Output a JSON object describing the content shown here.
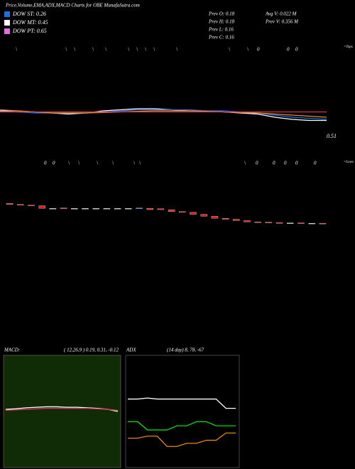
{
  "header": {
    "title": "Price,Volume,EMA,ADX,MACD Charts for OBE MunafaSutra.com",
    "legend": [
      {
        "label": "DOW ST: 0.26",
        "color": "#1e6fe0"
      },
      {
        "label": "DOW MT: 0.45",
        "color": "#ffffff"
      },
      {
        "label": "DOW PT: 0.65",
        "color": "#e070e0"
      }
    ],
    "prev": [
      "Prev  O: 0.18",
      "Prev  H: 0.18",
      "Prev  L: 0.16",
      "Prev  C: 0.16"
    ],
    "volume": [
      "Avg V: 0.022  M",
      "Prev  V: 0.356  M"
    ],
    "tops_label": "=Tops",
    "lows_label": "=Lows",
    "tops_markers": [
      "\\",
      "\\",
      "\\",
      "\\",
      "\\",
      "\\",
      "\\",
      "\\",
      "\\",
      "\\",
      "\\",
      "\\",
      "0",
      "0",
      "0"
    ],
    "lows_markers": [
      "0",
      "0",
      "\\",
      "\\",
      "\\",
      "\\",
      "\\",
      "\\",
      "\\",
      "0",
      "0",
      "0",
      "0",
      "0"
    ]
  },
  "chart_data": [
    {
      "type": "line",
      "ylim": [
        0.45,
        0.95
      ],
      "annotation": "0.51",
      "series": [
        {
          "color": "#ffffff",
          "values": [
            0.63,
            0.63,
            0.625,
            0.62,
            0.615,
            0.62,
            0.63,
            0.635,
            0.64,
            0.64,
            0.635,
            0.63,
            0.63,
            0.625,
            0.62,
            0.615,
            0.6,
            0.59,
            0.585,
            0.585
          ]
        },
        {
          "color": "#1e6fe0",
          "values": [
            0.625,
            0.625,
            0.62,
            0.62,
            0.62,
            0.62,
            0.625,
            0.63,
            0.635,
            0.635,
            0.635,
            0.635,
            0.63,
            0.63,
            0.625,
            0.62,
            0.61,
            0.6,
            0.595,
            0.59
          ]
        },
        {
          "color": "#e09030",
          "values": [
            0.635,
            0.63,
            0.625,
            0.62,
            0.62,
            0.62,
            0.622,
            0.625,
            0.628,
            0.63,
            0.63,
            0.63,
            0.628,
            0.625,
            0.622,
            0.62,
            0.615,
            0.61,
            0.605,
            0.6
          ]
        },
        {
          "color": "#e03060",
          "values": [
            0.625,
            0.625,
            0.625,
            0.625,
            0.625,
            0.625,
            0.625,
            0.625,
            0.625,
            0.625,
            0.625,
            0.625,
            0.625,
            0.625,
            0.625,
            0.625,
            0.625,
            0.625,
            0.625,
            0.625
          ]
        }
      ]
    },
    {
      "type": "candlestick",
      "ylim": [
        0.1,
        0.24
      ],
      "open": [
        0.205,
        0.202,
        0.2,
        0.198,
        0.19,
        0.191,
        0.19,
        0.19,
        0.19,
        0.19,
        0.19,
        0.19,
        0.19,
        0.19,
        0.189,
        0.186,
        0.18,
        0.178,
        0.172,
        0.166,
        0.16,
        0.157,
        0.153,
        0.149,
        0.148,
        0.147,
        0.146,
        0.146,
        0.145,
        0.145
      ],
      "close": [
        0.202,
        0.2,
        0.198,
        0.19,
        0.19,
        0.19,
        0.19,
        0.19,
        0.19,
        0.19,
        0.19,
        0.19,
        0.191,
        0.186,
        0.186,
        0.18,
        0.178,
        0.172,
        0.166,
        0.16,
        0.157,
        0.153,
        0.149,
        0.148,
        0.147,
        0.146,
        0.146,
        0.145,
        0.145,
        0.144
      ]
    },
    {
      "type": "line",
      "title": "MACD:",
      "subtitle": "( 12,26,9 ) 0.19, 0.31, -0.12",
      "ylim": [
        -1,
        1
      ],
      "series": [
        {
          "color": "#ffffff",
          "values": [
            0.02,
            0.03,
            0.05,
            0.06,
            0.07,
            0.07,
            0.06,
            0.06,
            0.05,
            0.04,
            0.02,
            -0.02
          ]
        },
        {
          "color": "#e03060",
          "values": [
            0.0,
            0.01,
            0.02,
            0.03,
            0.04,
            0.04,
            0.04,
            0.04,
            0.04,
            0.03,
            0.02,
            0.0
          ]
        }
      ]
    },
    {
      "type": "line",
      "title": "ADX",
      "subtitle": "(14  day) 8, 78, -67",
      "ylim": [
        0,
        100
      ],
      "series": [
        {
          "color": "#ffffff",
          "values": [
            61,
            61,
            62,
            61,
            61,
            61,
            61,
            61,
            61,
            61,
            52,
            52
          ]
        },
        {
          "color": "#00e000",
          "values": [
            39,
            39,
            31,
            31,
            31,
            35,
            35,
            39,
            39,
            35,
            35,
            35
          ]
        },
        {
          "color": "#e08a00",
          "values": [
            23,
            23,
            25,
            25,
            15,
            15,
            18,
            18,
            21,
            21,
            28,
            28
          ]
        }
      ]
    }
  ]
}
